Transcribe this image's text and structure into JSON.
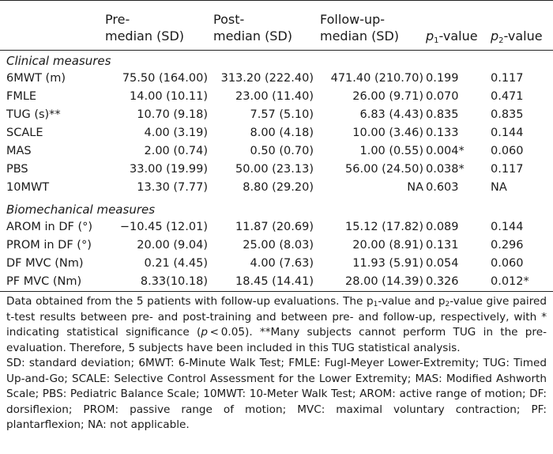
{
  "table": {
    "headers": {
      "pre": [
        "Pre-",
        "median (SD)"
      ],
      "post": [
        "Post-",
        "median (SD)"
      ],
      "follow": [
        "Follow-up-",
        "median (SD)"
      ],
      "p1": "-value",
      "p2": "-value",
      "p_letter": "p",
      "p1_sub": "1",
      "p2_sub": "2"
    },
    "sections": [
      {
        "title": "Clinical measures",
        "rows": [
          {
            "measure": "6MWT (m)",
            "pre": "75.50 (164.00)",
            "post": "313.20 (222.40)",
            "follow": "471.40 (210.70)",
            "p1": "0.199",
            "p2": "0.117"
          },
          {
            "measure": "FMLE",
            "pre": "14.00 (10.11)",
            "post": "23.00 (11.40)",
            "follow": "26.00 (9.71)",
            "p1": "0.070",
            "p2": "0.471"
          },
          {
            "measure": "TUG (s)**",
            "pre": "10.70 (9.18)",
            "post": "7.57 (5.10)",
            "follow": "6.83 (4.43)",
            "p1": "0.835",
            "p2": "0.835"
          },
          {
            "measure": "SCALE",
            "pre": "4.00 (3.19)",
            "post": "8.00 (4.18)",
            "follow": "10.00 (3.46)",
            "p1": "0.133",
            "p2": "0.144"
          },
          {
            "measure": "MAS",
            "pre": "2.00 (0.74)",
            "post": "0.50 (0.70)",
            "follow": "1.00 (0.55)",
            "p1": "0.004*",
            "p2": "0.060"
          },
          {
            "measure": "PBS",
            "pre": "33.00 (19.99)",
            "post": "50.00 (23.13)",
            "follow": "56.00 (24.50)",
            "p1": "0.038*",
            "p2": "0.117"
          },
          {
            "measure": "10MWT",
            "pre": "13.30 (7.77)",
            "post": "8.80 (29.20)",
            "follow": "NA",
            "p1": "0.603",
            "p2": "NA"
          }
        ]
      },
      {
        "title": "Biomechanical measures",
        "rows": [
          {
            "measure": "AROM in DF (°)",
            "pre": "−10.45 (12.01)",
            "post": "11.87 (20.69)",
            "follow": "15.12 (17.82)",
            "p1": "0.089",
            "p2": "0.144"
          },
          {
            "measure": "PROM in DF (°)",
            "pre": "20.00 (9.04)",
            "post": "25.00 (8.03)",
            "follow": "20.00 (8.91)",
            "p1": "0.131",
            "p2": "0.296"
          },
          {
            "measure": "DF MVC (Nm)",
            "pre": "0.21 (4.45)",
            "post": "4.00 (7.63)",
            "follow": "11.93 (5.91)",
            "p1": "0.054",
            "p2": "0.060"
          },
          {
            "measure": "PF MVC (Nm)",
            "pre": "8.33(10.18)",
            "post": "18.45 (14.41)",
            "follow": "28.00 (14.39)",
            "p1": "0.326",
            "p2": "0.012*"
          }
        ]
      }
    ]
  },
  "notes": {
    "n1_a": "Data obtained from the 5 patients with follow-up evaluations. The p",
    "n1_s1": "1",
    "n1_b": "-value and p",
    "n1_s2": "2",
    "n1_c": "-value give paired t-test results between pre- and post-training and between pre- and follow-up, respectively, with * indicating statistical significance (",
    "n1_p": "p",
    "n1_d": " < 0.05). **Many subjects cannot perform TUG in the pre- evaluation. Therefore, 5 subjects have been included in this TUG statistical analysis.",
    "n2": "SD: standard deviation; 6MWT: 6-Minute Walk Test; FMLE: Fugl-Meyer Lower-Extremity; TUG: Timed Up-and-Go; SCALE: Selective Control Assessment for the Lower Extremity; MAS: Modified Ashworth Scale; PBS: Pediatric Balance Scale; 10MWT: 10-Meter Walk Test; AROM: active range of motion; DF: dorsiflexion; PROM: passive range of motion; MVC: maximal voluntary contraction; PF: plantarflexion; NA: not applicable."
  }
}
